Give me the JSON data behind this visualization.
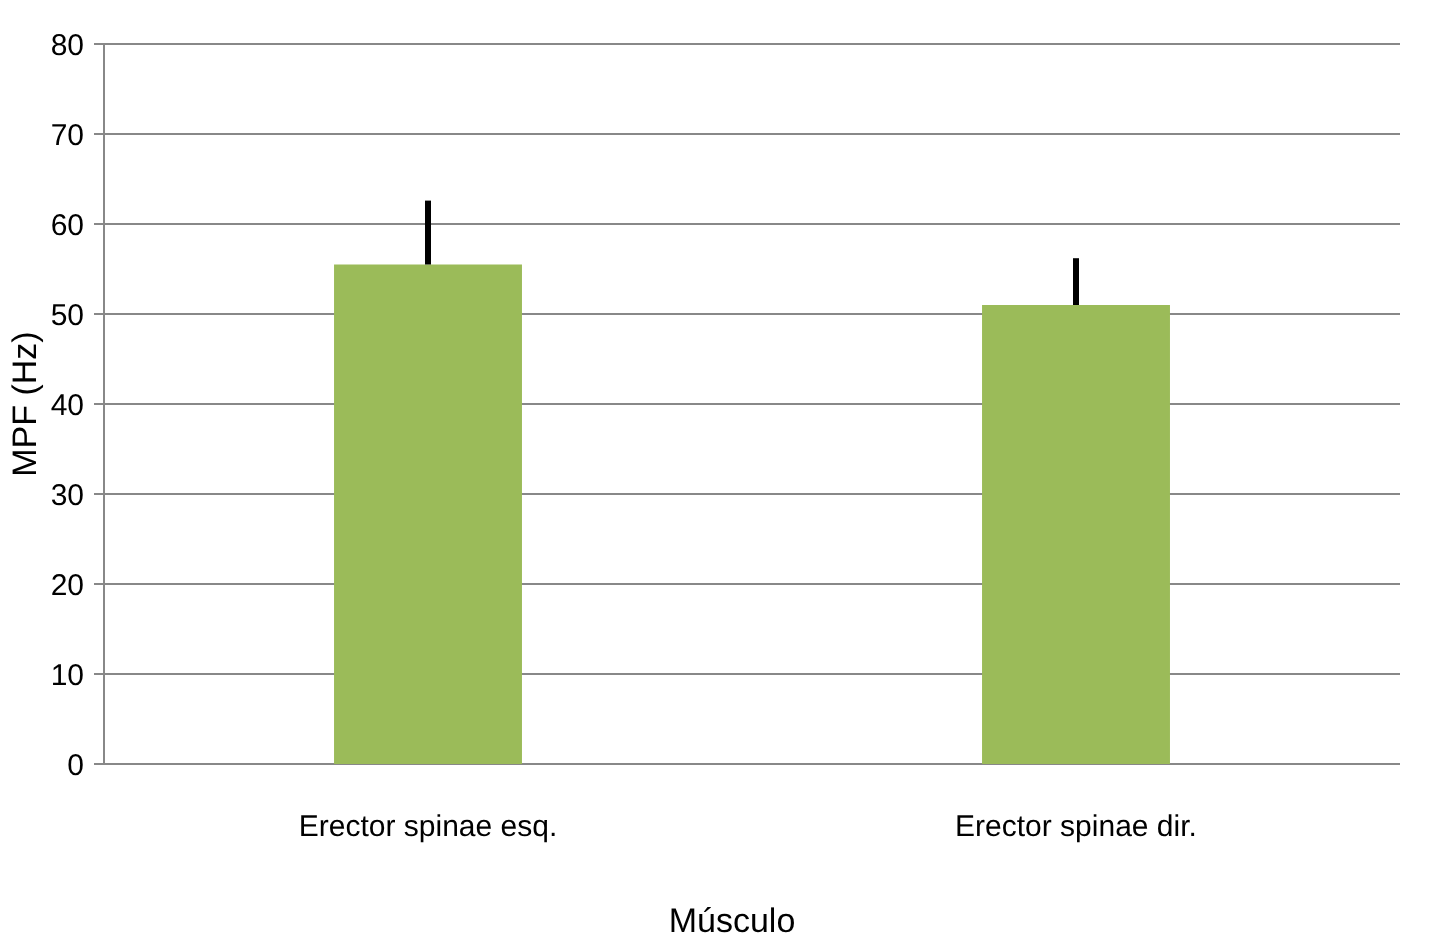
{
  "chart_data": {
    "type": "bar",
    "xlabel": "Músculo",
    "ylabel": "MPF (Hz)",
    "categories": [
      "Erector spinae esq.",
      "Erector spinae dir."
    ],
    "values": [
      55.5,
      51.0
    ],
    "color": "#9bbb59",
    "errors": [
      [
        55.5,
        62.6
      ],
      [
        51.0,
        56.2
      ]
    ],
    "ylim": [
      0,
      80
    ],
    "yticks": [
      0,
      10,
      20,
      30,
      40,
      50,
      60,
      70,
      80
    ],
    "grid": "y"
  }
}
